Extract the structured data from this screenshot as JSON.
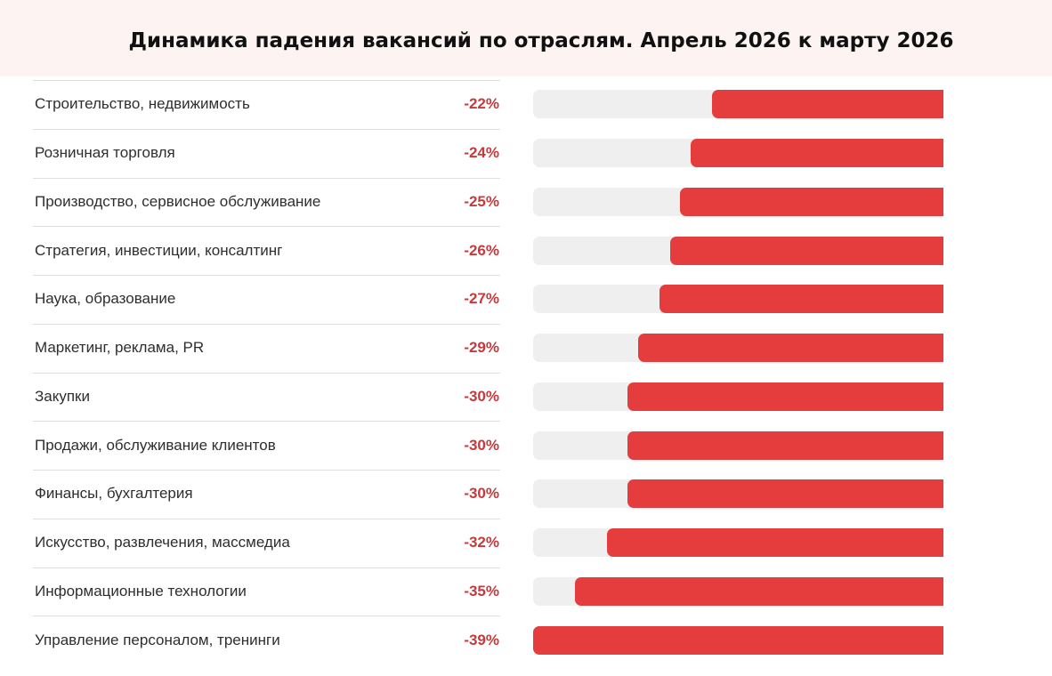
{
  "chart_data": {
    "type": "bar",
    "orientation": "horizontal",
    "title": "Динамика падения вакансий по отраслям. Апрель 2026 к марту 2026",
    "categories": [
      "Строительство, недвижимость",
      "Розничная торговля",
      "Производство, сервисное обслуживание",
      "Стратегия, инвестиции, консалтинг",
      "Наука, образование",
      "Маркетинг, реклама, PR",
      "Закупки",
      "Продажи, обслуживание клиентов",
      "Финансы, бухгалтерия",
      "Искусство, развлечения, массмедиа",
      "Информационные технологии",
      "Управление персоналом, тренинги"
    ],
    "values": [
      -22,
      -24,
      -25,
      -26,
      -27,
      -29,
      -30,
      -30,
      -30,
      -32,
      -35,
      -39
    ],
    "value_labels": [
      "-22%",
      "-24%",
      "-25%",
      "-26%",
      "-27%",
      "-29%",
      "-30%",
      "-30%",
      "-30%",
      "-32%",
      "-35%",
      "-39%"
    ],
    "unit": "%",
    "xlim": [
      -39,
      0
    ],
    "grid": false,
    "legend": "none",
    "colors": {
      "bar": "#e53d3e",
      "track": "#efefef",
      "value_text": "#c8393b",
      "header_bg": "#fcf3f2"
    }
  }
}
